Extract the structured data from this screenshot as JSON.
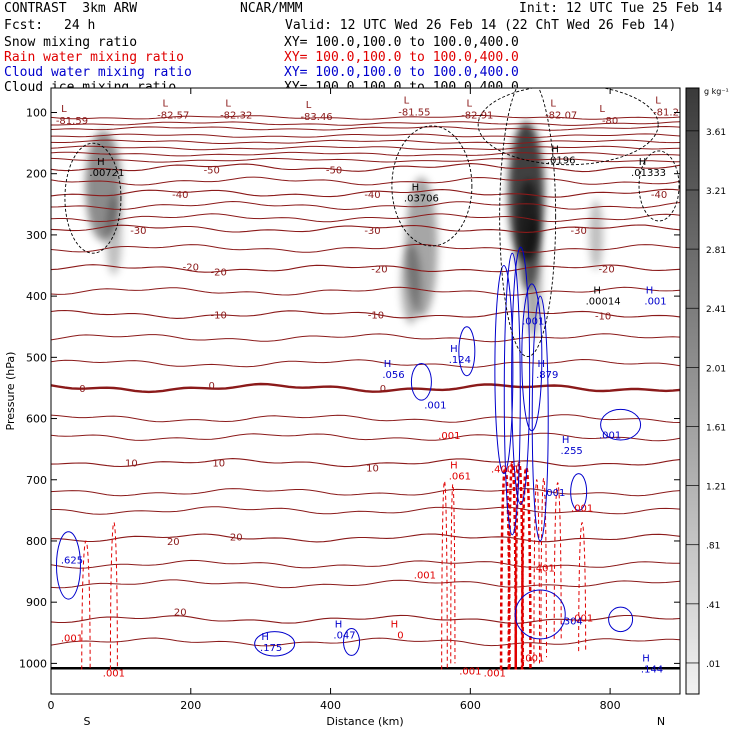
{
  "header": {
    "model": "CONTRAST  3km ARW",
    "org": "NCAR/MMM",
    "init": "Init: 12 UTC Tue 25 Feb 14",
    "fcst_label": "Fcst:",
    "fcst_value": "24 h",
    "valid": "Valid: 12 UTC Wed 26 Feb 14 (22 ChT Wed 26 Feb 14)",
    "fields": [
      {
        "name": "Snow mixing ratio",
        "xy": "XY= 100.0,100.0 to 100.0,400.0",
        "color": "#000000"
      },
      {
        "name": "Rain water mixing ratio",
        "xy": "XY= 100.0,100.0 to 100.0,400.0",
        "color": "#e00000"
      },
      {
        "name": "Cloud water mixing ratio",
        "xy": "XY= 100.0,100.0 to 100.0,400.0",
        "color": "#0000cc"
      },
      {
        "name": "Cloud ice mixing ratio",
        "xy": "XY= 100.0,100.0 to 100.0,400.0",
        "color": "#000000"
      }
    ]
  },
  "chart_data": {
    "type": "contour",
    "xlabel": "Distance (km)",
    "ylabel": "Pressure (hPa)",
    "xlim": [
      0,
      900
    ],
    "ylim": [
      1050,
      60
    ],
    "x_ticks": [
      0,
      200,
      400,
      600,
      800
    ],
    "y_ticks": [
      100,
      200,
      300,
      400,
      500,
      600,
      700,
      800,
      900,
      1000
    ],
    "end_labels": {
      "left": "S",
      "right": "N"
    },
    "colorbar": {
      "unit": "g kg⁻¹",
      "levels": [
        "3.61",
        "3.21",
        "2.81",
        "2.41",
        "2.01",
        "1.61",
        "1.21",
        ".81",
        ".41",
        ".01"
      ],
      "values": [
        3.61,
        3.21,
        2.81,
        2.41,
        2.01,
        1.61,
        1.21,
        0.81,
        0.41,
        0.01
      ]
    },
    "temperature_contours": [
      {
        "t": -50,
        "p": 190
      },
      {
        "t": -40,
        "p": 232
      },
      {
        "t": -30,
        "p": 290
      },
      {
        "t": -20,
        "p": 355
      },
      {
        "t": -10,
        "p": 430
      },
      {
        "t": 0,
        "p": 550
      },
      {
        "t": 10,
        "p": 672
      },
      {
        "t": 20,
        "p": 795
      },
      {
        "t": 30,
        "p": 928
      }
    ],
    "temperature_labels": [
      {
        "text": "-50",
        "x": 230,
        "p": 193
      },
      {
        "text": "-50",
        "x": 405,
        "p": 193
      },
      {
        "text": "-40",
        "x": 185,
        "p": 233
      },
      {
        "text": "-40",
        "x": 460,
        "p": 233
      },
      {
        "text": "-40",
        "x": 870,
        "p": 233
      },
      {
        "text": "-30",
        "x": 125,
        "p": 292
      },
      {
        "text": "-30",
        "x": 460,
        "p": 292
      },
      {
        "text": "-30",
        "x": 755,
        "p": 292
      },
      {
        "text": "-20",
        "x": 200,
        "p": 352
      },
      {
        "text": "-20",
        "x": 240,
        "p": 360
      },
      {
        "text": "-20",
        "x": 470,
        "p": 355
      },
      {
        "text": "-20",
        "x": 795,
        "p": 355
      },
      {
        "text": "-10",
        "x": 240,
        "p": 430
      },
      {
        "text": "-10",
        "x": 465,
        "p": 430
      },
      {
        "text": "-10",
        "x": 790,
        "p": 432
      },
      {
        "text": "0",
        "x": 45,
        "p": 550
      },
      {
        "text": "0",
        "x": 230,
        "p": 545
      },
      {
        "text": "0",
        "x": 475,
        "p": 550
      },
      {
        "text": "10",
        "x": 115,
        "p": 672
      },
      {
        "text": "10",
        "x": 240,
        "p": 672
      },
      {
        "text": "10",
        "x": 460,
        "p": 680
      },
      {
        "text": "20",
        "x": 175,
        "p": 800
      },
      {
        "text": "20",
        "x": 265,
        "p": 793
      },
      {
        "text": "20",
        "x": 185,
        "p": 915
      }
    ],
    "upper_lows": [
      {
        "text": "-81.59",
        "x": 30,
        "p": 112
      },
      {
        "text": "-82.57",
        "x": 175,
        "p": 103
      },
      {
        "text": "-82.32",
        "x": 265,
        "p": 103
      },
      {
        "text": "-83.46",
        "x": 380,
        "p": 106
      },
      {
        "text": "-81.55",
        "x": 520,
        "p": 98
      },
      {
        "text": "-82.91",
        "x": 610,
        "p": 103
      },
      {
        "text": "-82.07",
        "x": 730,
        "p": 103
      },
      {
        "text": "-80",
        "x": 800,
        "p": 112
      },
      {
        "text": "-81.2",
        "x": 880,
        "p": 98
      }
    ],
    "highs": [
      {
        "text": ".00721",
        "x": 80,
        "p": 202,
        "color": "#000000"
      },
      {
        "text": ".03706",
        "x": 530,
        "p": 244,
        "color": "#000000"
      },
      {
        "text": ".0196",
        "x": 730,
        "p": 182,
        "color": "#000000"
      },
      {
        "text": ".01333",
        "x": 855,
        "p": 202,
        "color": "#000000"
      },
      {
        "text": ".00014",
        "x": 790,
        "p": 412,
        "color": "#000000"
      },
      {
        "text": ".001",
        "x": 865,
        "p": 412,
        "color": "#0000cc"
      },
      {
        "text": ".056",
        "x": 490,
        "p": 532,
        "color": "#0000cc"
      },
      {
        "text": ".124",
        "x": 585,
        "p": 508,
        "color": "#0000cc"
      },
      {
        "text": ".879",
        "x": 710,
        "p": 532,
        "color": "#0000cc"
      },
      {
        "text": ".255",
        "x": 745,
        "p": 656,
        "color": "#0000cc"
      },
      {
        "text": ".175",
        "x": 315,
        "p": 978,
        "color": "#0000cc"
      },
      {
        "text": ".047",
        "x": 420,
        "p": 958,
        "color": "#0000cc"
      },
      {
        "text": ".144",
        "x": 860,
        "p": 1013,
        "color": "#0000cc"
      },
      {
        "text": ".061",
        "x": 585,
        "p": 698,
        "color": "#e00000"
      },
      {
        "text": "0",
        "x": 500,
        "p": 958,
        "color": "#e00000"
      }
    ],
    "contour_labels": [
      {
        "text": ".001",
        "x": 550,
        "p": 577,
        "color": "#0000cc"
      },
      {
        "text": ".001",
        "x": 570,
        "p": 627,
        "color": "#e00000"
      },
      {
        "text": ".001",
        "x": 535,
        "p": 855,
        "color": "#e00000"
      },
      {
        "text": ".001",
        "x": 30,
        "p": 958,
        "color": "#e00000"
      },
      {
        "text": ".001",
        "x": 90,
        "p": 1015,
        "color": "#e00000"
      },
      {
        "text": ".001",
        "x": 600,
        "p": 1012,
        "color": "#e00000"
      },
      {
        "text": ".001",
        "x": 635,
        "p": 1015,
        "color": "#e00000"
      },
      {
        "text": ".001",
        "x": 800,
        "p": 626,
        "color": "#0000cc"
      },
      {
        "text": ".001",
        "x": 720,
        "p": 720,
        "color": "#0000cc"
      },
      {
        "text": ".001",
        "x": 760,
        "p": 745,
        "color": "#e00000"
      },
      {
        "text": ".001",
        "x": 760,
        "p": 925,
        "color": "#e00000"
      },
      {
        "text": ".625",
        "x": 30,
        "p": 830,
        "color": "#0000cc"
      },
      {
        "text": ".401",
        "x": 705,
        "p": 843,
        "color": "#e00000"
      },
      {
        "text": ".304",
        "x": 745,
        "p": 930,
        "color": "#0000cc"
      },
      {
        "text": ".4001",
        "x": 650,
        "p": 682,
        "color": "#e00000"
      },
      {
        "text": ".001",
        "x": 690,
        "p": 440,
        "color": "#0000cc"
      },
      {
        "text": ".001",
        "x": 690,
        "p": 990,
        "color": "#e00000"
      }
    ]
  }
}
